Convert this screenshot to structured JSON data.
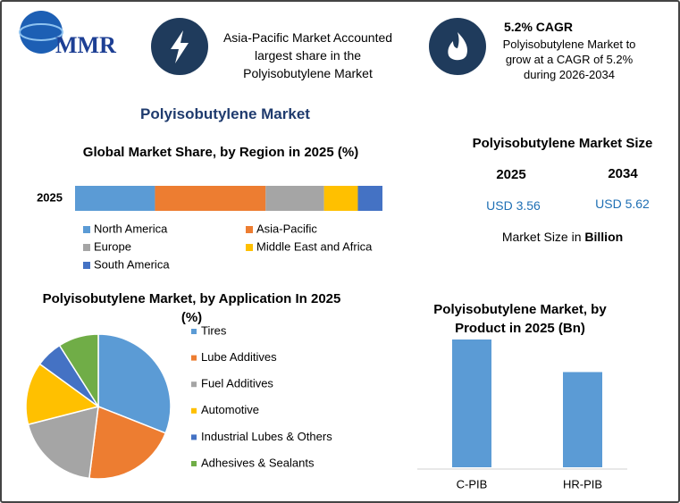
{
  "logo": "MMR",
  "highlights": [
    {
      "lines": [
        "Asia-Pacific Market Accounted",
        "largest share in the",
        "Polyisobutylene Market"
      ]
    },
    {
      "title": "5.2% CAGR",
      "lines": [
        "Polyisobutylene Market to",
        "grow at a CAGR of 5.2%",
        "during 2026-2034"
      ]
    }
  ],
  "title": "Polyisobutylene Market",
  "market_size": {
    "title": "Polyisobutylene Market Size",
    "columns": [
      {
        "year": "2025",
        "value": "USD 3.56"
      },
      {
        "year": "2034",
        "value": "USD 5.62"
      }
    ],
    "note": "Market Size in",
    "note_bold": "Billion"
  },
  "chart_data": [
    {
      "type": "stacked-hbar",
      "title": "Global Market Share, by Region in 2025 (%)",
      "categories": [
        "2025"
      ],
      "series": [
        {
          "name": "North America",
          "color": "#5b9bd5",
          "values": [
            26
          ]
        },
        {
          "name": "Asia-Pacific",
          "color": "#ed7d31",
          "values": [
            36
          ]
        },
        {
          "name": "Europe",
          "color": "#a5a5a5",
          "values": [
            19
          ]
        },
        {
          "name": "Middle East and Africa",
          "color": "#ffc000",
          "values": [
            11
          ]
        },
        {
          "name": "South America",
          "color": "#4472c4",
          "values": [
            8
          ]
        }
      ]
    },
    {
      "type": "pie",
      "title": "Polyisobutylene Market, by Application In 2025 (%)",
      "categories": [
        "Tires",
        "Lube Additives",
        "Fuel Additives",
        "Automotive",
        "Industrial Lubes & Others",
        "Adhesives & Sealants"
      ],
      "values": [
        31,
        21,
        19,
        14,
        6,
        9
      ],
      "colors": [
        "#5b9bd5",
        "#ed7d31",
        "#a5a5a5",
        "#ffc000",
        "#4472c4",
        "#70ad47"
      ]
    },
    {
      "type": "bar",
      "title": "Polyisobutylene Market, by Product in 2025 (Bn)",
      "categories": [
        "C-PIB",
        "HR-PIB"
      ],
      "values": [
        2.04,
        1.52
      ],
      "color": "#5b9bd5"
    }
  ]
}
